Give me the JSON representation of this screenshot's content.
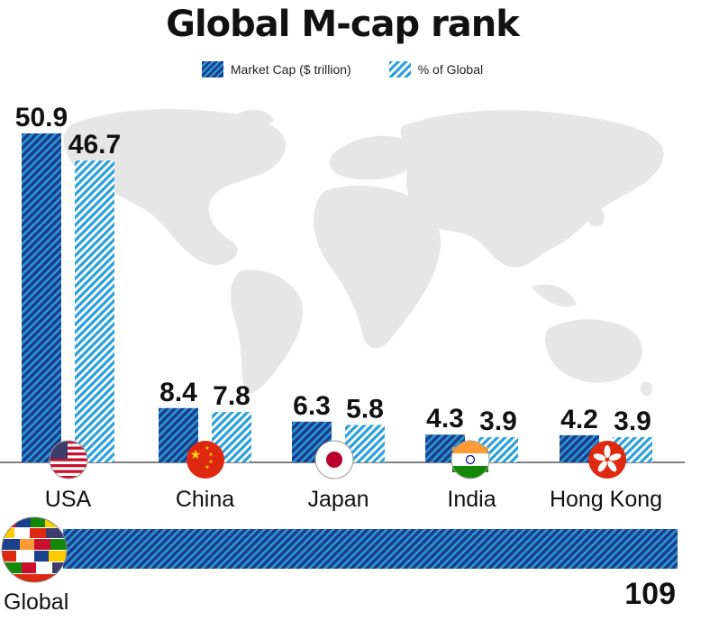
{
  "chart_data": {
    "type": "bar",
    "title": "Global M-cap rank",
    "categories": [
      "USA",
      "China",
      "Japan",
      "India",
      "Hong Kong"
    ],
    "series": [
      {
        "name": "Market Cap ($ trillion)",
        "values": [
          50.9,
          8.4,
          6.3,
          4.3,
          4.2
        ]
      },
      {
        "name": "% of Global",
        "values": [
          46.7,
          7.8,
          5.8,
          3.9,
          3.9
        ]
      }
    ],
    "total": {
      "label": "Global",
      "value": 109
    },
    "legend_position": "top-center",
    "grid": false
  },
  "colors": {
    "cap_dark": "#1a3f8c",
    "cap_light": "#2f9ad6",
    "pct_stripe": "#2aa0dc",
    "map": "#e6e6e6",
    "baseline": "#555555"
  },
  "icons": [
    "us-flag-icon",
    "china-flag-icon",
    "japan-flag-icon",
    "india-flag-icon",
    "hong-kong-flag-icon",
    "world-flags-globe-icon"
  ]
}
